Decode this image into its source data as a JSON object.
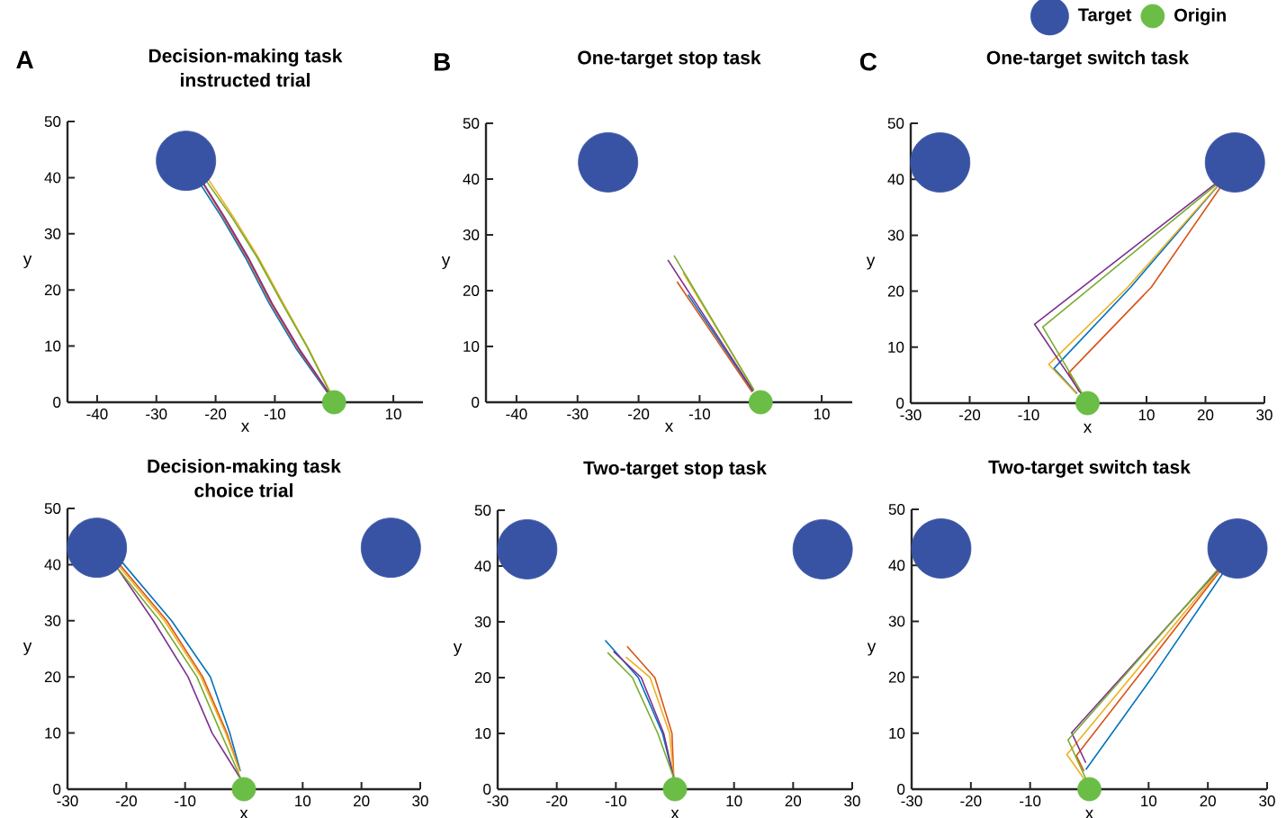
{
  "chart_data": [
    {
      "type": "line",
      "title": "Decision-making task",
      "subtitle": "instructed trial",
      "xlabel": "x",
      "ylabel": "y",
      "xlim": [
        -45,
        15
      ],
      "ylim": [
        0,
        50
      ],
      "xticks": [
        -40,
        -30,
        -20,
        -10,
        10
      ],
      "yticks": [
        0,
        10,
        20,
        30,
        40,
        50
      ],
      "annotations": [
        "A"
      ],
      "series": [
        {
          "type": "scatter",
          "marker": "circle",
          "color": "#3953a4",
          "x": [
            -25
          ],
          "values": [
            43
          ]
        },
        {
          "type": "scatter",
          "marker": "circle",
          "color": "#6abd45",
          "x": [
            0
          ],
          "values": [
            0
          ]
        },
        {
          "color": "#0072bd",
          "x": [
            -0.9,
            -6.5,
            -10.9,
            -15,
            -19,
            -22.6
          ],
          "values": [
            1.4,
            9.7,
            17.5,
            25.8,
            33,
            38.9
          ]
        },
        {
          "color": "#d95319",
          "x": [
            -0.8,
            -6.2,
            -10.6,
            -14.7,
            -18.7,
            -22.2
          ],
          "values": [
            1.4,
            9.7,
            17.5,
            25.8,
            33,
            39.1
          ]
        },
        {
          "color": "#edb120",
          "x": [
            -0.5,
            -4.4,
            -8.5,
            -12.8,
            -17,
            -21.3
          ],
          "values": [
            1.5,
            9.7,
            17.5,
            25.8,
            33,
            39.8
          ]
        },
        {
          "color": "#7e2f8e",
          "x": [
            -0.7,
            -6,
            -10.4,
            -14.5,
            -18.5,
            -22.3
          ],
          "values": [
            1.4,
            9.7,
            17.5,
            25.8,
            33,
            39.4
          ]
        },
        {
          "color": "#77ac30",
          "x": [
            -0.6,
            -4.5,
            -8.7,
            -13,
            -17.3,
            -21.7
          ],
          "values": [
            1.5,
            9.7,
            17.5,
            25.8,
            33,
            39.6
          ]
        }
      ]
    },
    {
      "type": "line",
      "title": "One-target stop task",
      "xlabel": "x",
      "ylabel": "y",
      "xlim": [
        -45,
        15
      ],
      "ylim": [
        0,
        50
      ],
      "xticks": [
        -40,
        -30,
        -20,
        -10,
        10
      ],
      "yticks": [
        0,
        10,
        20,
        30,
        40,
        50
      ],
      "annotations": [
        "B"
      ],
      "series": [
        {
          "type": "scatter",
          "marker": "circle",
          "color": "#3953a4",
          "x": [
            -25
          ],
          "values": [
            43
          ]
        },
        {
          "type": "scatter",
          "marker": "circle",
          "color": "#6abd45",
          "x": [
            0
          ],
          "values": [
            0
          ]
        },
        {
          "color": "#0072bd",
          "x": [
            -1.3,
            -11.9
          ],
          "values": [
            2,
            19.3
          ]
        },
        {
          "color": "#d95319",
          "x": [
            -1.4,
            -13.7
          ],
          "values": [
            1.8,
            21.6
          ]
        },
        {
          "color": "#edb120",
          "x": [
            -1.1,
            -12.7
          ],
          "values": [
            2.2,
            23.2
          ]
        },
        {
          "color": "#7e2f8e",
          "x": [
            -1.2,
            -15.2
          ],
          "values": [
            2,
            25.5
          ]
        },
        {
          "color": "#77ac30",
          "x": [
            -1.1,
            -14.2
          ],
          "values": [
            2.2,
            26.3
          ]
        }
      ]
    },
    {
      "type": "line",
      "title": "One-target switch task",
      "xlabel": "x",
      "ylabel": "y",
      "xlim": [
        -30,
        30
      ],
      "ylim": [
        0,
        50
      ],
      "xticks": [
        -30,
        -20,
        -10,
        10,
        20,
        30
      ],
      "yticks": [
        0,
        10,
        20,
        30,
        40,
        50
      ],
      "annotations": [
        "C"
      ],
      "legend": "top right",
      "series": [
        {
          "type": "scatter",
          "name": "Target",
          "marker": "circle",
          "color": "#3953a4",
          "x": [
            -25,
            25
          ],
          "values": [
            43,
            43
          ]
        },
        {
          "type": "scatter",
          "name": "Origin",
          "marker": "circle",
          "color": "#6abd45",
          "x": [
            0
          ],
          "values": [
            0
          ]
        },
        {
          "color": "#0072bd",
          "x": [
            -1.8,
            -5.7,
            7.3,
            22
          ],
          "values": [
            1.7,
            6.2,
            20.7,
            38.7
          ]
        },
        {
          "color": "#d95319",
          "x": [
            -1.4,
            -3.2,
            10.8,
            22.5
          ],
          "values": [
            2,
            5.4,
            20.7,
            38.5
          ]
        },
        {
          "color": "#edb120",
          "x": [
            -1.9,
            -6.6,
            6.8,
            22.1
          ],
          "values": [
            1.7,
            6.9,
            20.7,
            38.9
          ]
        },
        {
          "color": "#7e2f8e",
          "x": [
            -1.1,
            -9,
            21.8
          ],
          "values": [
            1.7,
            14.1,
            39.3
          ]
        },
        {
          "color": "#77ac30",
          "x": [
            -0.9,
            -7.6,
            21.9
          ],
          "values": [
            1.7,
            13.6,
            39.1
          ]
        }
      ]
    },
    {
      "type": "line",
      "title": "Decision-making task",
      "subtitle": "choice trial",
      "xlabel": "x",
      "ylabel": "y",
      "xlim": [
        -30,
        30
      ],
      "ylim": [
        0,
        50
      ],
      "xticks": [
        -30,
        -20,
        -10,
        10,
        20,
        30
      ],
      "yticks": [
        0,
        10,
        20,
        30,
        40,
        50
      ],
      "series": [
        {
          "type": "scatter",
          "marker": "circle",
          "color": "#3953a4",
          "x": [
            -25,
            25
          ],
          "values": [
            43,
            43
          ]
        },
        {
          "type": "scatter",
          "marker": "circle",
          "color": "#6abd45",
          "x": [
            0
          ],
          "values": [
            0
          ]
        },
        {
          "color": "#0072bd",
          "x": [
            -0.6,
            -2.4,
            -5.7,
            -12.3,
            -20.7
          ],
          "values": [
            3.2,
            10,
            20,
            30,
            40.4
          ]
        },
        {
          "color": "#d95319",
          "x": [
            -0.7,
            -2.9,
            -7,
            -13.1,
            -21.1
          ],
          "values": [
            3.2,
            10,
            20,
            30,
            40
          ]
        },
        {
          "color": "#edb120",
          "x": [
            -0.7,
            -3.1,
            -7.3,
            -13.5,
            -21.3
          ],
          "values": [
            3.2,
            10,
            20,
            30,
            39.8
          ]
        },
        {
          "color": "#7e2f8e",
          "x": [
            -0.4,
            -5.4,
            -9.5,
            -15.4,
            -21.8
          ],
          "values": [
            1.6,
            10,
            20,
            30,
            39.8
          ]
        },
        {
          "color": "#77ac30",
          "x": [
            -0.4,
            -3.9,
            -8,
            -14.3,
            -21.6
          ],
          "values": [
            1.6,
            10,
            20,
            30,
            39.5
          ]
        }
      ]
    },
    {
      "type": "line",
      "title": "Two-target stop task",
      "xlabel": "x",
      "ylabel": "y",
      "xlim": [
        -30,
        30
      ],
      "ylim": [
        0,
        50
      ],
      "xticks": [
        -30,
        -20,
        -10,
        10,
        20,
        30
      ],
      "yticks": [
        0,
        10,
        20,
        30,
        40,
        50
      ],
      "series": [
        {
          "type": "scatter",
          "marker": "circle",
          "color": "#3953a4",
          "x": [
            -25,
            25
          ],
          "values": [
            43,
            43
          ]
        },
        {
          "type": "scatter",
          "marker": "circle",
          "color": "#6abd45",
          "x": [
            0
          ],
          "values": [
            0
          ]
        },
        {
          "color": "#0072bd",
          "x": [
            -0.2,
            -2.1,
            -6.2,
            -11.8
          ],
          "values": [
            2,
            10,
            20,
            26.7
          ]
        },
        {
          "color": "#d95319",
          "x": [
            -0.2,
            -0.5,
            -3.4,
            -8.1
          ],
          "values": [
            2,
            10,
            20,
            25.6
          ]
        },
        {
          "color": "#edb120",
          "x": [
            -0.2,
            -0.9,
            -4.2,
            -8.3
          ],
          "values": [
            2,
            10,
            20,
            23.7
          ]
        },
        {
          "color": "#7e2f8e",
          "x": [
            -0.2,
            -1.9,
            -5.7,
            -10.4
          ],
          "values": [
            2,
            10,
            20,
            24.7
          ]
        },
        {
          "color": "#77ac30",
          "x": [
            -0.2,
            -2.9,
            -7.2,
            -11.4
          ],
          "values": [
            2,
            10,
            20,
            24.5
          ]
        }
      ]
    },
    {
      "type": "line",
      "title": "Two-target switch task",
      "xlabel": "x",
      "ylabel": "y",
      "xlim": [
        -30,
        30
      ],
      "ylim": [
        0,
        50
      ],
      "xticks": [
        -30,
        -20,
        -10,
        10,
        20,
        30
      ],
      "yticks": [
        0,
        10,
        20,
        30,
        40,
        50
      ],
      "series": [
        {
          "type": "scatter",
          "marker": "circle",
          "color": "#3953a4",
          "x": [
            -25,
            25
          ],
          "values": [
            43,
            43
          ]
        },
        {
          "type": "scatter",
          "marker": "circle",
          "color": "#6abd45",
          "x": [
            0
          ],
          "values": [
            0
          ]
        },
        {
          "color": "#0072bd",
          "x": [
            -0.6,
            10.6,
            22.5
          ],
          "values": [
            3.5,
            20,
            38.5
          ]
        },
        {
          "color": "#d95319",
          "x": [
            -0.9,
            -2.2,
            22
          ],
          "values": [
            3.2,
            6,
            38.9
          ]
        },
        {
          "color": "#edb120",
          "x": [
            -0.6,
            -3.8,
            21.8
          ],
          "values": [
            1.4,
            6.2,
            38.9
          ]
        },
        {
          "color": "#7e2f8e",
          "x": [
            -0.6,
            -3,
            21.8
          ],
          "values": [
            4.7,
            10.1,
            39.2
          ]
        },
        {
          "color": "#77ac30",
          "x": [
            -0.4,
            -3.6,
            21.7
          ],
          "values": [
            1.4,
            8.8,
            39.3
          ]
        }
      ]
    }
  ]
}
